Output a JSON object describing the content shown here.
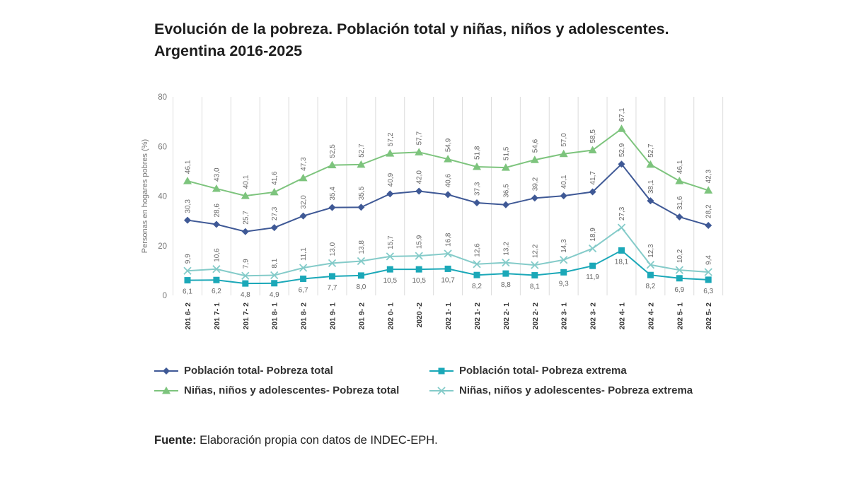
{
  "title": {
    "line1": "Evolución de la pobreza. Población total y niñas, niños y adolescentes.",
    "line2": "Argentina 2016-2025"
  },
  "source": {
    "label": "Fuente:",
    "text": " Elaboración propia con datos de INDEC-EPH."
  },
  "colors": {
    "pob_total": "#3f5996",
    "pob_extrema": "#1ba8b8",
    "nna_total": "#7dc47d",
    "nna_extrema": "#84cbc9",
    "grid": "#dcdcdc",
    "axis_text": "#777777",
    "value_text": "#666666",
    "xlabel_text": "#333333"
  },
  "chart_data": {
    "type": "line",
    "title": "Evolución de la pobreza. Población total y niñas, niños y adolescentes. Argentina 2016-2025",
    "xlabel": "",
    "ylabel": "Personas en hogares pobres (%)",
    "ylim": [
      0,
      80
    ],
    "yticks": [
      0,
      20,
      40,
      60,
      80
    ],
    "grid": "vertical",
    "legend_position": "bottom",
    "categories": [
      "201 6- 2",
      "201 7- 1",
      "201 7- 2",
      "201 8- 1",
      "201 8- 2",
      "201 9- 1",
      "201 9- 2",
      "202 0- 1",
      "2020 -2",
      "202 1- 1",
      "202 1- 2",
      "202 2- 1",
      "202 2- 2",
      "202 3- 1",
      "202 3- 2",
      "202 4- 1",
      "202 4- 2",
      "202 5- 1",
      "202 5- 2"
    ],
    "series": [
      {
        "key": "nna_total",
        "name": "Niñas, niños y adolescentes- Pobreza total",
        "marker": "triangle",
        "values": [
          46.1,
          43.0,
          40.1,
          41.6,
          47.3,
          52.5,
          52.7,
          57.2,
          57.7,
          54.9,
          51.8,
          51.5,
          54.6,
          57.0,
          58.5,
          67.1,
          52.7,
          46.1,
          42.3
        ],
        "labels": [
          "46,1",
          "43,0",
          "40,1",
          "41,6",
          "47,3",
          "52,5",
          "52,7",
          "57,2",
          "57,7",
          "54,9",
          "51,8",
          "51,5",
          "54,6",
          "57,0",
          "58,5",
          "67,1",
          "52,7",
          "46,1",
          "42,3"
        ]
      },
      {
        "key": "pob_total",
        "name": "Población total- Pobreza total",
        "marker": "diamond",
        "values": [
          30.3,
          28.6,
          25.7,
          27.3,
          32.0,
          35.4,
          35.5,
          40.9,
          42.0,
          40.6,
          37.3,
          36.5,
          39.2,
          40.1,
          41.7,
          52.9,
          38.1,
          31.6,
          28.2
        ],
        "labels": [
          "30,3",
          "28,6",
          "25,7",
          "27,3",
          "32,0",
          "35,4",
          "35,5",
          "40,9",
          "42,0",
          "40,6",
          "37,3",
          "36,5",
          "39,2",
          "40,1",
          "41,7",
          "52,9",
          "38,1",
          "31,6",
          "28,2"
        ]
      },
      {
        "key": "nna_extrema",
        "name": "Niñas, niños y adolescentes- Pobreza extrema",
        "marker": "x",
        "values": [
          9.9,
          10.6,
          7.9,
          8.1,
          11.1,
          13.0,
          13.8,
          15.7,
          15.9,
          16.8,
          12.6,
          13.2,
          12.2,
          14.3,
          18.9,
          27.3,
          12.3,
          10.2,
          9.4
        ],
        "labels": [
          "9,9",
          "10,6",
          "7,9",
          "8,1",
          "11,1",
          "13,0",
          "13,8",
          "15,7",
          "15,9",
          "16,8",
          "12,6",
          "13,2",
          "12,2",
          "14,3",
          "18,9",
          "27,3",
          "12,3",
          "10,2",
          "9,4"
        ]
      },
      {
        "key": "pob_extrema",
        "name": "Población total- Pobreza extrema",
        "marker": "square",
        "values": [
          6.1,
          6.2,
          4.8,
          4.9,
          6.7,
          7.7,
          8.0,
          10.5,
          10.5,
          10.7,
          8.2,
          8.8,
          8.1,
          9.3,
          11.9,
          18.1,
          8.2,
          6.9,
          6.3
        ],
        "labels": [
          "6,1",
          "6,2",
          "4,8",
          "4,9",
          "6,7",
          "7,7",
          "8,0",
          "10,5",
          "10,5",
          "10,7",
          "8,2",
          "8,8",
          "8,1",
          "9,3",
          "11,9",
          "18,1",
          "8,2",
          "6,9",
          "6,3"
        ]
      }
    ],
    "legend": [
      {
        "key": "pob_total",
        "marker": "diamond",
        "label": "Población total- Pobreza total"
      },
      {
        "key": "pob_extrema",
        "marker": "square",
        "label": "Población total- Pobreza extrema"
      },
      {
        "key": "nna_total",
        "marker": "triangle",
        "label": "Niñas, niños y adolescentes- Pobreza total"
      },
      {
        "key": "nna_extrema",
        "marker": "x",
        "label": "Niñas, niños y adolescentes- Pobreza extrema"
      }
    ]
  }
}
